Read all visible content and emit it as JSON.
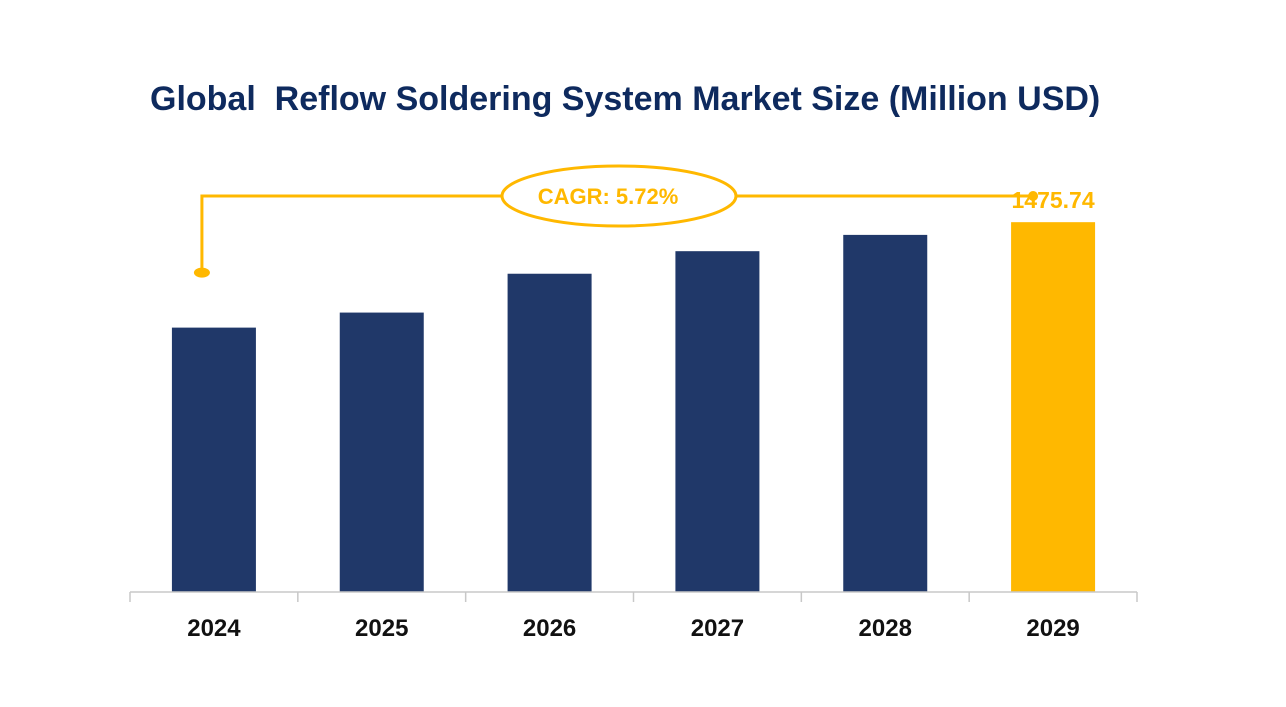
{
  "chart_data": {
    "type": "bar",
    "title": "Global  Reflow Soldering System Market Size (Million USD)",
    "categories": [
      "2024",
      "2025",
      "2026",
      "2027",
      "2028",
      "2029"
    ],
    "values": [
      1055,
      1115,
      1270,
      1360,
      1425,
      1475.74
    ],
    "value_labels": [
      "",
      "",
      "",
      "",
      "",
      "1475.74"
    ],
    "highlight_index": 5,
    "annotation": "CAGR: 5.72%",
    "ylim": [
      0,
      1660
    ],
    "grid": false,
    "legend": "none"
  },
  "colors": {
    "title": "#0e2a5e",
    "bar": "#203869",
    "highlight": "#ffb800",
    "axis": "#c8c8c8"
  }
}
